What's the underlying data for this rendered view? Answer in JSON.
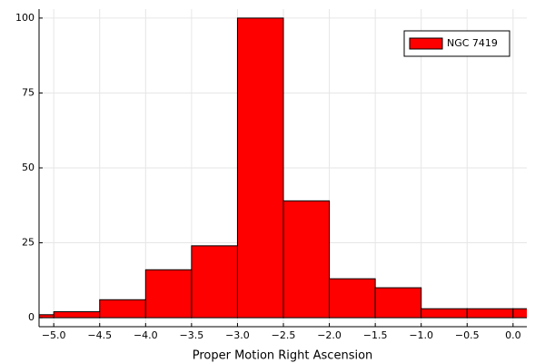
{
  "chart_data": {
    "type": "histogram",
    "xlabel": "Proper Motion Right Ascension",
    "series": [
      {
        "name": "NGC 7419",
        "color": "#ff0000",
        "bins": [
          -5.5,
          -5.0,
          -4.5,
          -4.0,
          -3.5,
          -3.0,
          -2.5,
          -2.0,
          -1.5,
          -1.0,
          -0.5,
          0.0,
          0.5
        ],
        "values": [
          1,
          2,
          6,
          16,
          24,
          100,
          39,
          13,
          10,
          3,
          3,
          3
        ]
      }
    ],
    "xlim": [
      -5.16,
      0.15
    ],
    "ylim": [
      -3,
      103
    ],
    "xticks": [
      {
        "value": -5.0,
        "label": "−5.0"
      },
      {
        "value": -4.5,
        "label": "−4.5"
      },
      {
        "value": -4.0,
        "label": "−4.0"
      },
      {
        "value": -3.5,
        "label": "−3.5"
      },
      {
        "value": -3.0,
        "label": "−3.0"
      },
      {
        "value": -2.5,
        "label": "−2.5"
      },
      {
        "value": -2.0,
        "label": "−2.0"
      },
      {
        "value": -1.5,
        "label": "−1.5"
      },
      {
        "value": -1.0,
        "label": "−1.0"
      },
      {
        "value": -0.5,
        "label": "−0.5"
      },
      {
        "value": 0.0,
        "label": "0.0"
      }
    ],
    "yticks": [
      0,
      25,
      50,
      75,
      100
    ],
    "grid": true,
    "legend": "top-right"
  }
}
